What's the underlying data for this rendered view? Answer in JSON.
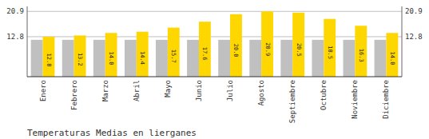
{
  "chart_data": {
    "type": "bar",
    "title": "Temperaturas Medias en lierganes",
    "categories": [
      "Enero",
      "Febrero",
      "Marzo",
      "Abril",
      "Mayo",
      "Junio",
      "Julio",
      "Agosto",
      "Septiembre",
      "Octubre",
      "Noviembre",
      "Diciembre"
    ],
    "series": [
      {
        "color": "#C0C0C0",
        "values": [
          11.8,
          11.8,
          11.8,
          11.8,
          11.8,
          11.8,
          11.8,
          11.8,
          11.8,
          11.8,
          11.8,
          11.8
        ]
      },
      {
        "color": "#FFD700",
        "values": [
          12.8,
          13.2,
          14.0,
          14.4,
          15.7,
          17.6,
          20.0,
          20.9,
          20.5,
          18.5,
          16.3,
          14.0
        ],
        "value_labels": [
          "12.8",
          "13.2",
          "14.0",
          "14.4",
          "15.7",
          "17.6",
          "20.0",
          "20.9",
          "20.5",
          "18.5",
          "16.3",
          "14.0"
        ],
        "data_labels": true
      }
    ],
    "ylim": [
      0,
      22.5
    ],
    "yticks": [
      12.8,
      20.9
    ],
    "y2lim": [
      0,
      22.5
    ],
    "y2ticks": [
      12.8,
      20.9
    ],
    "grid": true
  }
}
